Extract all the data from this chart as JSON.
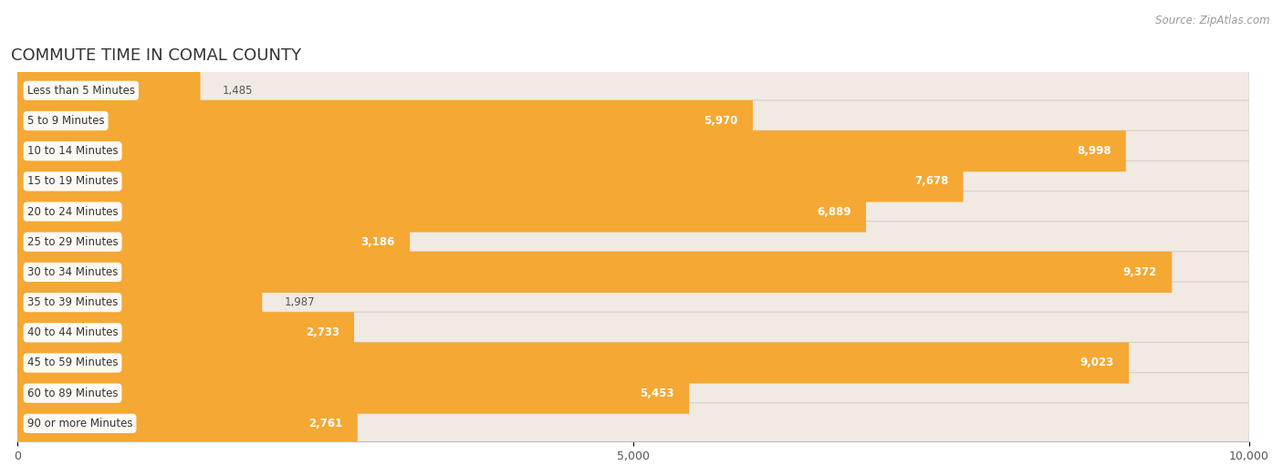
{
  "title": "COMMUTE TIME IN COMAL COUNTY",
  "source": "Source: ZipAtlas.com",
  "categories": [
    "Less than 5 Minutes",
    "5 to 9 Minutes",
    "10 to 14 Minutes",
    "15 to 19 Minutes",
    "20 to 24 Minutes",
    "25 to 29 Minutes",
    "30 to 34 Minutes",
    "35 to 39 Minutes",
    "40 to 44 Minutes",
    "45 to 59 Minutes",
    "60 to 89 Minutes",
    "90 or more Minutes"
  ],
  "values": [
    1485,
    5970,
    8998,
    7678,
    6889,
    3186,
    9372,
    1987,
    2733,
    9023,
    5453,
    2761
  ],
  "xlim": [
    0,
    10000
  ],
  "xticks": [
    0,
    5000,
    10000
  ],
  "bar_color": "#F5A833",
  "bar_color_light": "#F9C97A",
  "bar_bg_color": "#F0EAE2",
  "bar_border_color": "#D8D0C8",
  "bar_height": 0.68,
  "title_color": "#333333",
  "title_fontsize": 13,
  "label_fontsize": 8.5,
  "value_fontsize": 8.5,
  "source_fontsize": 8.5,
  "bg_color": "#FFFFFF",
  "plot_bg_color": "#FFFFFF",
  "tick_fontsize": 9,
  "label_color": "#333333",
  "value_color_inside": "#FFFFFF",
  "value_color_outside": "#555555",
  "grid_color": "#DDDDDD",
  "value_threshold": 2500
}
